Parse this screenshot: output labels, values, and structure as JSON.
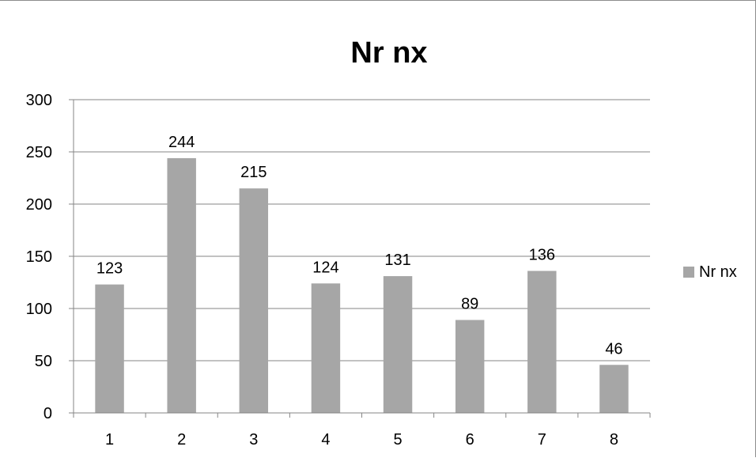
{
  "chart_data": {
    "type": "bar",
    "title": "Nr nx",
    "xlabel": "",
    "ylabel": "",
    "categories": [
      "1",
      "2",
      "3",
      "4",
      "5",
      "6",
      "7",
      "8"
    ],
    "series": [
      {
        "name": "Nr nx",
        "values": [
          123,
          244,
          215,
          124,
          131,
          89,
          136,
          46
        ],
        "color": "#a6a6a6"
      }
    ],
    "ylim": [
      0,
      300
    ],
    "yticks": [
      "0",
      "50",
      "100",
      "150",
      "200",
      "250",
      "300"
    ],
    "data_labels": [
      "123",
      "244",
      "215",
      "124",
      "131",
      "89",
      "136",
      "46"
    ],
    "grid": true,
    "legend_position": "right"
  }
}
